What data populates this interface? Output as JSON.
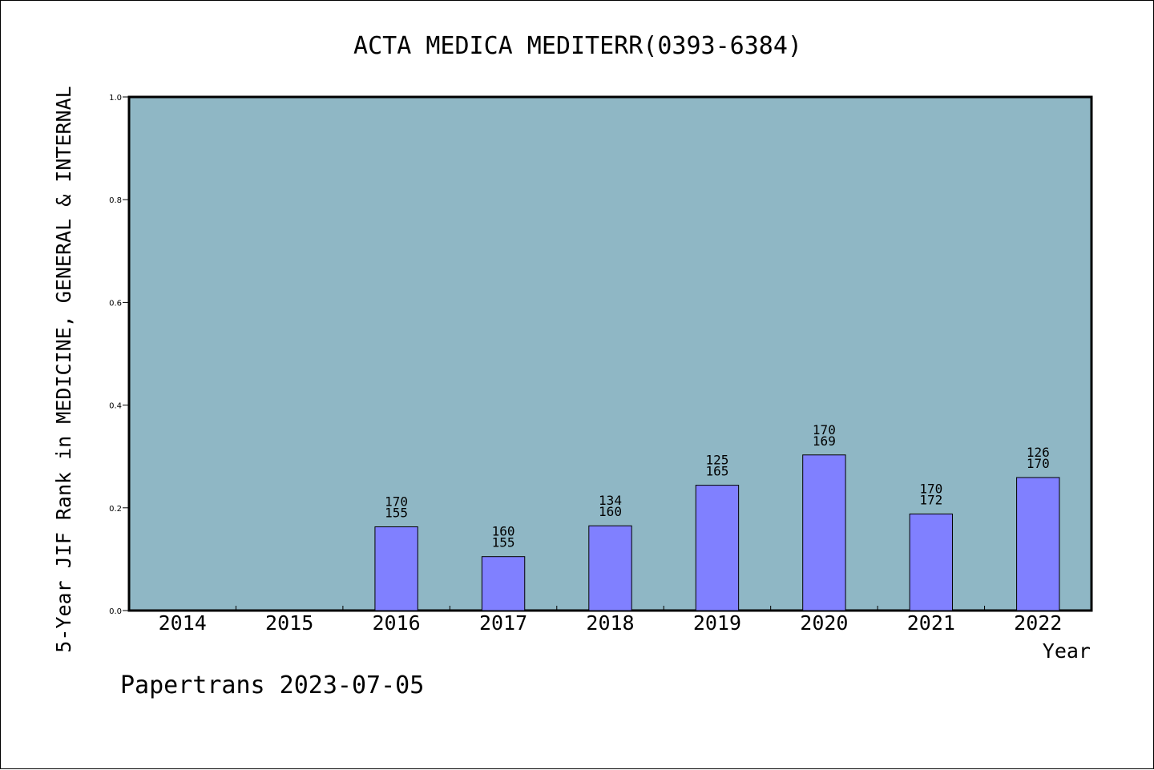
{
  "chart_data": {
    "type": "bar",
    "title": "ACTA MEDICA MEDITERR(0393-6384)",
    "xlabel": "Year",
    "ylabel": "5-Year JIF Rank in MEDICINE, GENERAL & INTERNAL",
    "categories": [
      "2014",
      "2015",
      "2016",
      "2017",
      "2018",
      "2019",
      "2020",
      "2021",
      "2022"
    ],
    "values": [
      null,
      null,
      0.163,
      0.105,
      0.165,
      0.244,
      0.303,
      0.188,
      0.259
    ],
    "bar_labels": [
      null,
      null,
      [
        "170",
        "155"
      ],
      [
        "160",
        "155"
      ],
      [
        "134",
        "160"
      ],
      [
        "125",
        "165"
      ],
      [
        "170",
        "169"
      ],
      [
        "170",
        "172"
      ],
      [
        "126",
        "170"
      ]
    ],
    "ylim": [
      0.0,
      1.0
    ],
    "yticks": [
      "0.0",
      "0.2",
      "0.4",
      "0.6",
      "0.8",
      "1.0"
    ],
    "grid": false,
    "colors": {
      "plot_background": "#8fb7c5",
      "bar": "#8080ff"
    }
  },
  "footer": {
    "text": "Papertrans 2023-07-05"
  }
}
